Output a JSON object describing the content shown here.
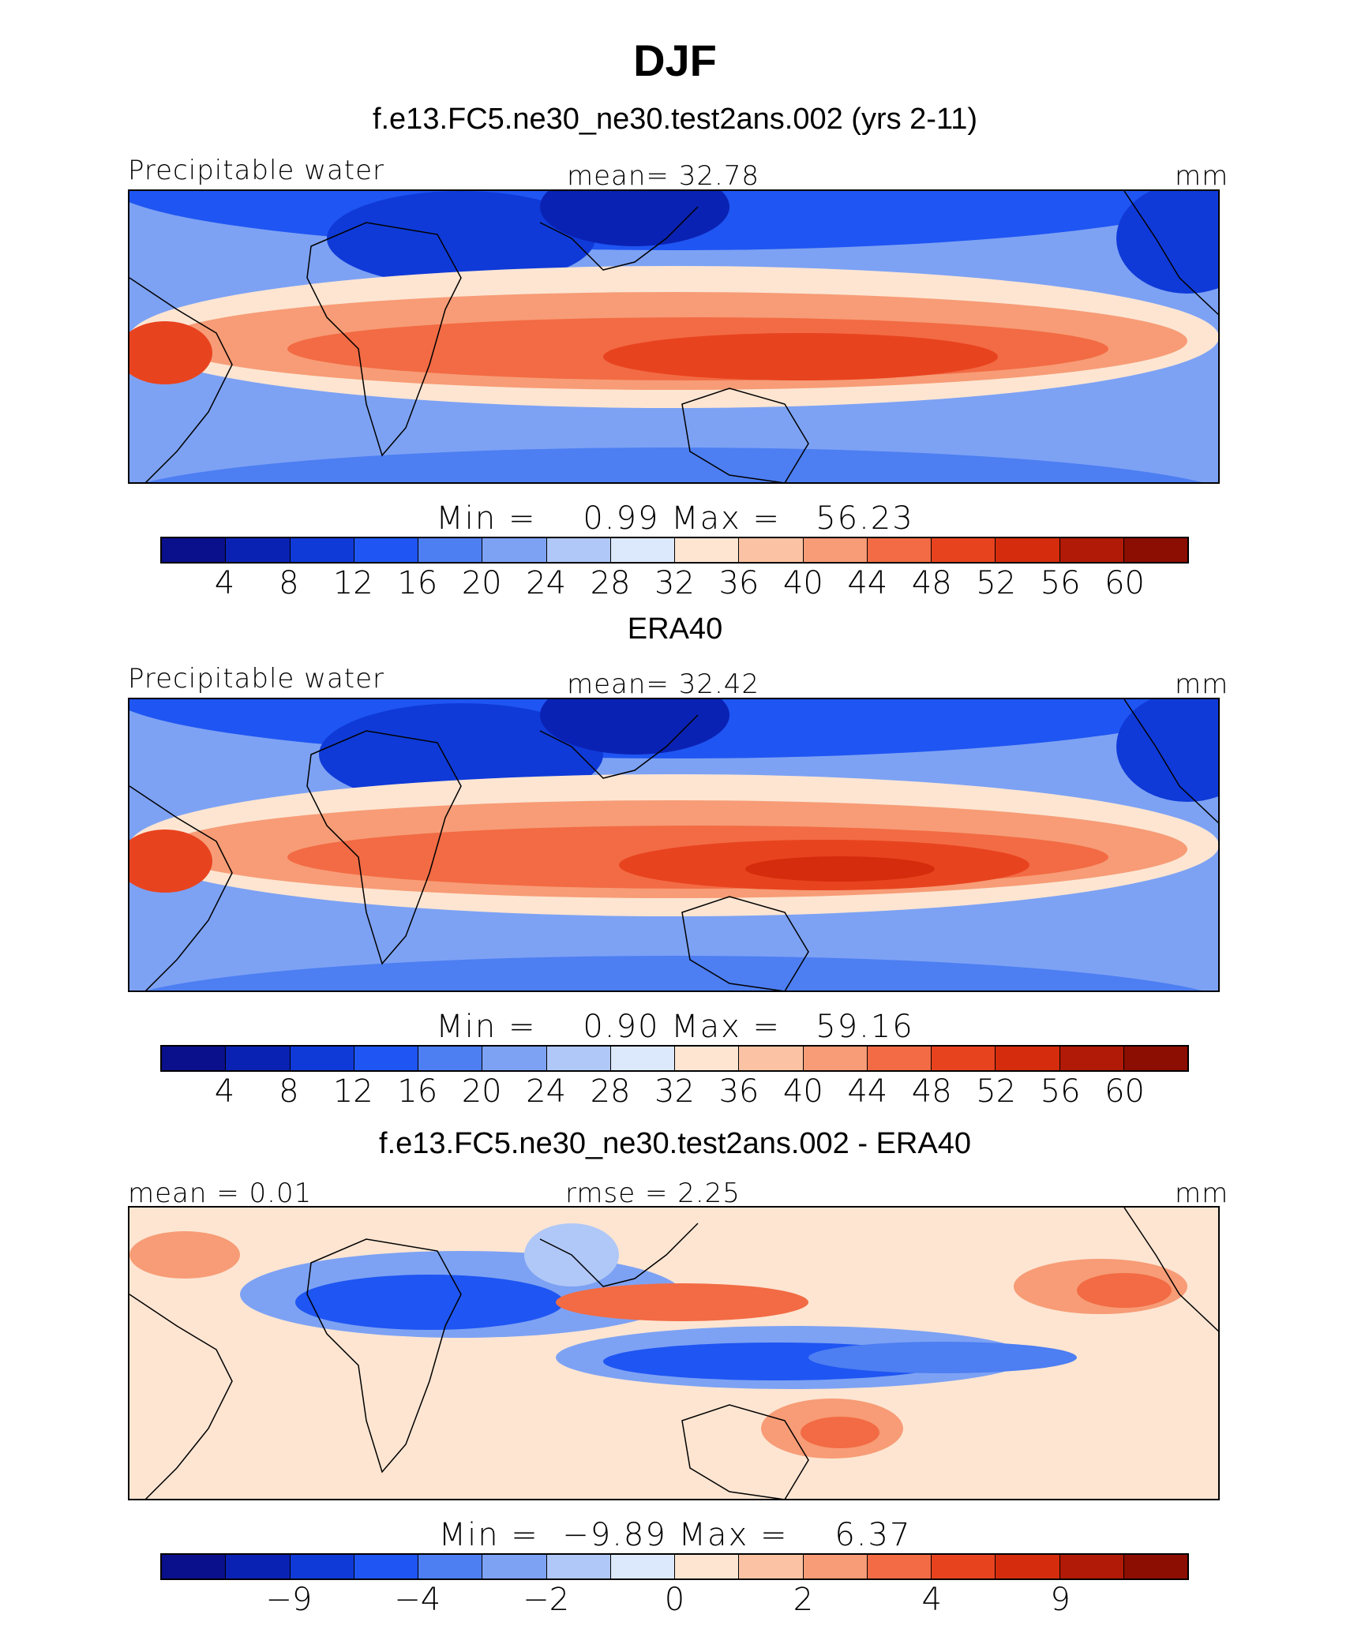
{
  "title": "DJF",
  "colors": [
    "#0a0f8c",
    "#0a22b4",
    "#0f3ad8",
    "#1f55f2",
    "#4d7ef2",
    "#7da2f4",
    "#b0c8f7",
    "#dce8fb",
    "#fde5d2",
    "#fbc3a3",
    "#f79c76",
    "#f26b44",
    "#e8431f",
    "#d42c0c",
    "#b01a06",
    "#8c0d02"
  ],
  "panels": [
    {
      "title": "f.e13.FC5.ne30_ne30.test2ans.002 (yrs 2-11)",
      "left_label": "Precipitable water",
      "center_label": "mean=  32.78",
      "right_label": "mm",
      "minmax": "Min =    0.99 Max =   56.23",
      "ticks": [
        "4",
        "8",
        "12",
        "16",
        "20",
        "24",
        "28",
        "32",
        "36",
        "40",
        "44",
        "48",
        "52",
        "56",
        "60"
      ]
    },
    {
      "title": "ERA40",
      "left_label": "Precipitable water",
      "center_label": "mean=  32.42",
      "right_label": "mm",
      "minmax": "Min =    0.90 Max =   59.16",
      "ticks": [
        "4",
        "8",
        "12",
        "16",
        "20",
        "24",
        "28",
        "32",
        "36",
        "40",
        "44",
        "48",
        "52",
        "56",
        "60"
      ]
    },
    {
      "title": "f.e13.FC5.ne30_ne30.test2ans.002 - ERA40",
      "left_label": "mean =   0.01",
      "center_label": "rmse =    2.25",
      "right_label": "mm",
      "minmax": "Min =  −9.89 Max =    6.37",
      "ticks": [
        "−9",
        "−4",
        "−2",
        "0",
        "2",
        "4",
        "9"
      ]
    }
  ],
  "chart_data": [
    {
      "type": "heatmap",
      "title": "f.e13.FC5.ne30_ne30.test2ans.002 (yrs 2-11)",
      "variable": "Precipitable water",
      "units": "mm",
      "mean": 32.78,
      "min": 0.99,
      "max": 56.23,
      "levels": [
        4,
        8,
        12,
        16,
        20,
        24,
        28,
        32,
        36,
        40,
        44,
        48,
        52,
        56,
        60
      ],
      "lat_range": [
        -38,
        38
      ],
      "lon_range": [
        0,
        300
      ]
    },
    {
      "type": "heatmap",
      "title": "ERA40",
      "variable": "Precipitable water",
      "units": "mm",
      "mean": 32.42,
      "min": 0.9,
      "max": 59.16,
      "levels": [
        4,
        8,
        12,
        16,
        20,
        24,
        28,
        32,
        36,
        40,
        44,
        48,
        52,
        56,
        60
      ],
      "lat_range": [
        -38,
        38
      ],
      "lon_range": [
        0,
        300
      ]
    },
    {
      "type": "heatmap",
      "title": "f.e13.FC5.ne30_ne30.test2ans.002 - ERA40",
      "units": "mm",
      "mean": 0.01,
      "rmse": 2.25,
      "min": -9.89,
      "max": 6.37,
      "levels": [
        -9,
        -4,
        -2,
        0,
        2,
        4,
        9
      ],
      "lat_range": [
        -38,
        38
      ],
      "lon_range": [
        0,
        300
      ]
    }
  ]
}
